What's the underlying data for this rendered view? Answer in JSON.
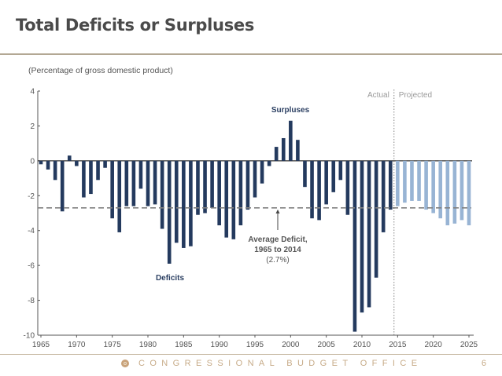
{
  "slide": {
    "title": "Total Deficits or Surpluses",
    "footer_org": "CONGRESSIONAL BUDGET OFFICE",
    "page_number": "6",
    "seal_icon": "cbo-seal-icon"
  },
  "colors": {
    "actual_bar": "#243a5e",
    "projected_bar": "#98b4d4",
    "average_line": "#808080",
    "title_rule": "#b3a894",
    "footer_text": "#c7ab88"
  },
  "chart_data": {
    "type": "bar",
    "title": "Total Deficits or Surpluses",
    "subtitle": "(Percentage of gross domestic product)",
    "xlabel": "",
    "ylabel": "",
    "ylim": [
      -10,
      4
    ],
    "xlim": [
      1965,
      2025
    ],
    "yticks": [
      4,
      2,
      0,
      -2,
      -4,
      -6,
      -8,
      -10
    ],
    "xticks": [
      1965,
      1970,
      1975,
      1980,
      1985,
      1990,
      1995,
      2000,
      2005,
      2010,
      2015,
      2020,
      2025
    ],
    "grid": false,
    "series": [
      {
        "name": "Actual",
        "x": [
          1965,
          1966,
          1967,
          1968,
          1969,
          1970,
          1971,
          1972,
          1973,
          1974,
          1975,
          1976,
          1977,
          1978,
          1979,
          1980,
          1981,
          1982,
          1983,
          1984,
          1985,
          1986,
          1987,
          1988,
          1989,
          1990,
          1991,
          1992,
          1993,
          1994,
          1995,
          1996,
          1997,
          1998,
          1999,
          2000,
          2001,
          2002,
          2003,
          2004,
          2005,
          2006,
          2007,
          2008,
          2009,
          2010,
          2011,
          2012,
          2013,
          2014
        ],
        "values": [
          -0.2,
          -0.5,
          -1.1,
          -2.9,
          0.3,
          -0.3,
          -2.1,
          -1.9,
          -1.1,
          -0.4,
          -3.3,
          -4.1,
          -2.6,
          -2.6,
          -1.6,
          -2.6,
          -2.5,
          -3.9,
          -5.9,
          -4.7,
          -5.0,
          -4.9,
          -3.1,
          -3.0,
          -2.7,
          -3.7,
          -4.4,
          -4.5,
          -3.7,
          -2.8,
          -2.1,
          -1.3,
          -0.3,
          0.8,
          1.3,
          2.3,
          1.2,
          -1.5,
          -3.3,
          -3.4,
          -2.5,
          -1.8,
          -1.1,
          -3.1,
          -9.8,
          -8.7,
          -8.4,
          -6.7,
          -4.1,
          -2.8
        ]
      },
      {
        "name": "Projected",
        "x": [
          2015,
          2016,
          2017,
          2018,
          2019,
          2020,
          2021,
          2022,
          2023,
          2024,
          2025
        ],
        "values": [
          -2.6,
          -2.4,
          -2.3,
          -2.3,
          -2.8,
          -3.0,
          -3.3,
          -3.7,
          -3.6,
          -3.4,
          -3.7
        ]
      }
    ],
    "reference_line": {
      "label": "Average Deficit, 1965 to 2014 (2.7%)",
      "value": -2.7
    },
    "divider": {
      "between": [
        2014,
        2015
      ],
      "left_label": "Actual",
      "right_label": "Projected"
    },
    "annotations": [
      {
        "text": "Surpluses",
        "near_year": 2000
      },
      {
        "text": "Deficits",
        "near_year": 1984
      },
      {
        "text_lines": [
          "Average Deficit,",
          "1965 to 2014",
          "(2.7%)"
        ],
        "arrow_to_year": 1999
      }
    ]
  }
}
